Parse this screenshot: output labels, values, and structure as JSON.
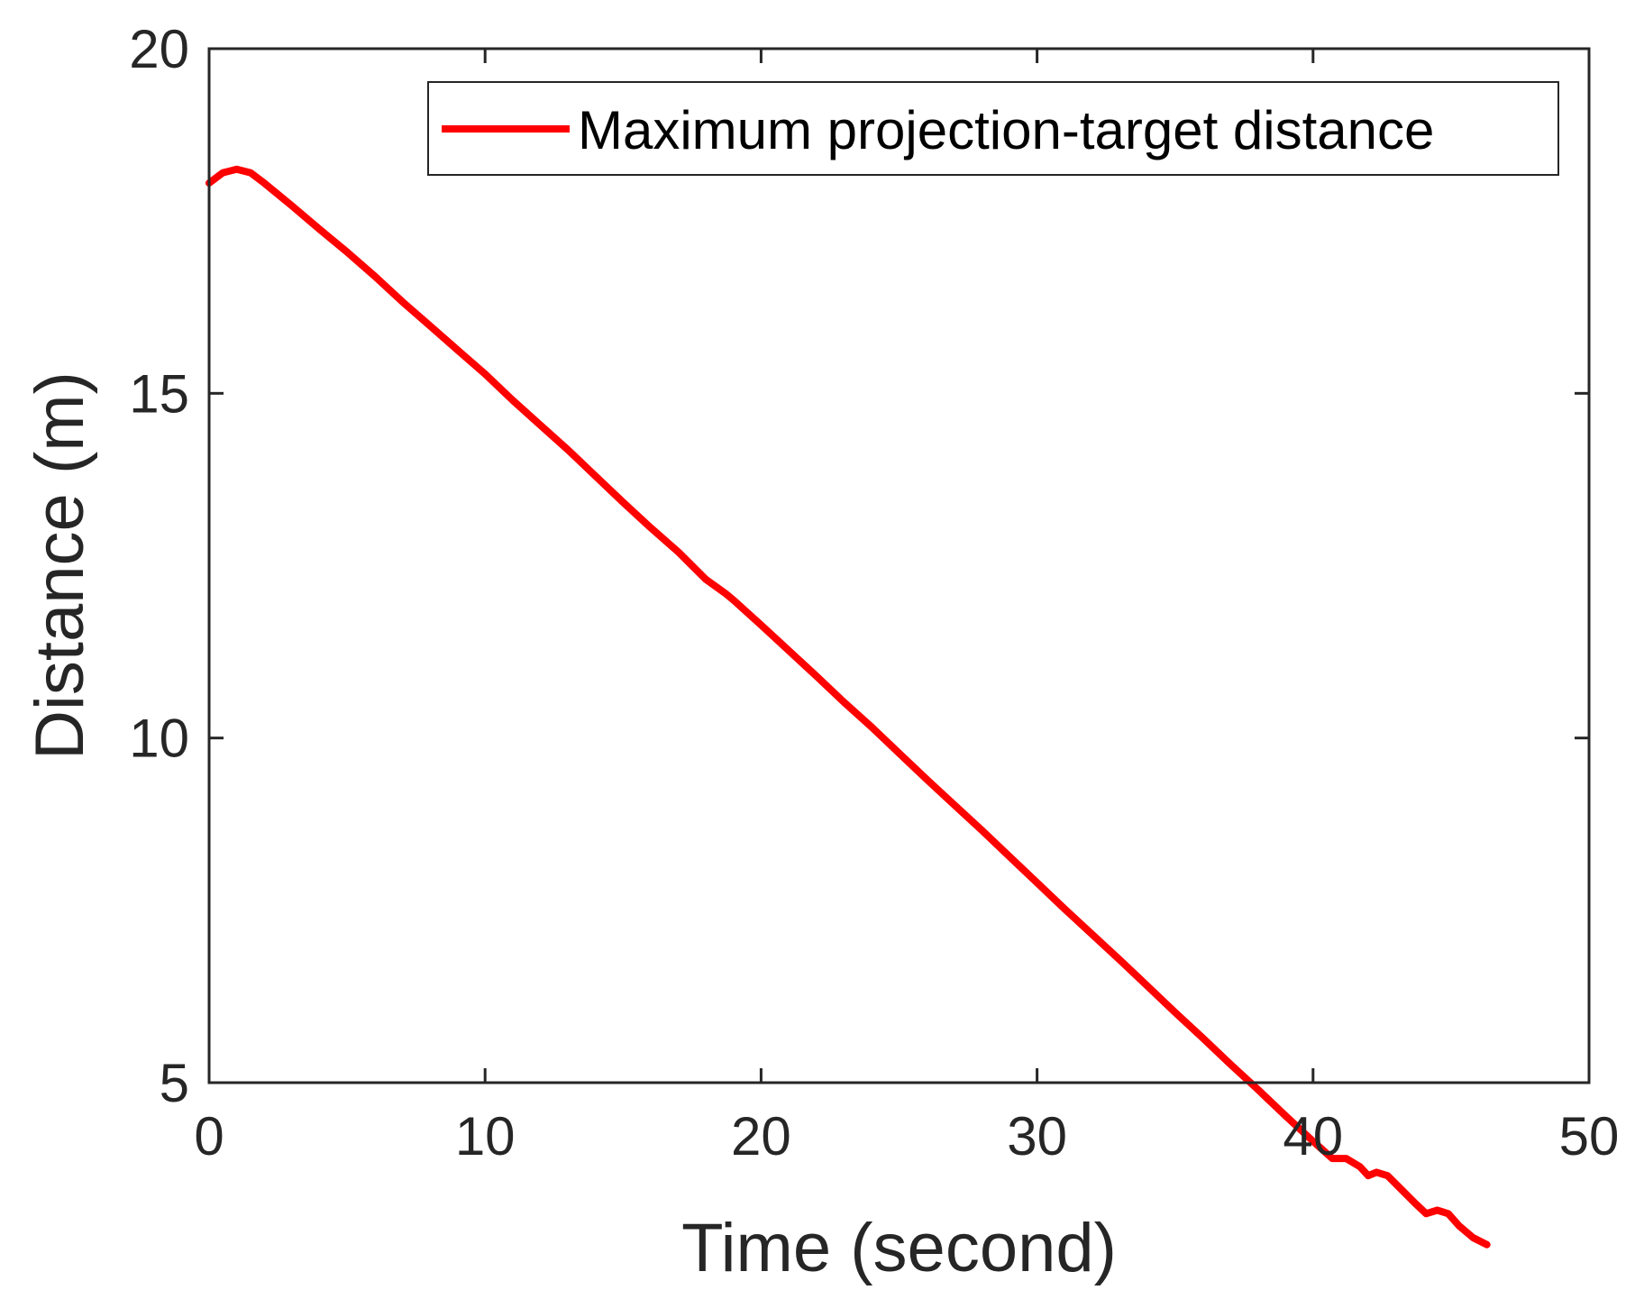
{
  "chart_data": {
    "type": "line",
    "title": "",
    "xlabel": "Time (second)",
    "ylabel": "Distance (m)",
    "xlim": [
      0,
      50
    ],
    "ylim": [
      5,
      20
    ],
    "xticks": [
      0,
      10,
      20,
      30,
      40,
      50
    ],
    "yticks": [
      5,
      10,
      15,
      20
    ],
    "xtick_labels": [
      "0",
      "10",
      "20",
      "30",
      "40",
      "50"
    ],
    "ytick_labels": [
      "5",
      "10",
      "15",
      "20"
    ],
    "grid": false,
    "legend": {
      "position": "top-right"
    },
    "series": [
      {
        "name": "Maximum projection-target distance",
        "color": "#ff0000",
        "x": [
          0,
          0.5,
          1.0,
          1.5,
          2.0,
          3,
          4,
          5,
          6,
          7,
          8,
          9,
          10,
          11,
          12,
          13,
          14,
          15,
          16,
          17,
          18,
          18.7,
          19,
          20,
          21,
          22,
          23,
          24,
          25,
          26,
          27,
          28,
          29,
          30,
          31,
          32,
          33,
          34,
          35,
          36,
          37,
          38,
          39,
          40,
          40.7,
          41.2,
          41.7,
          42.0,
          42.3,
          42.7,
          43.2,
          43.7,
          44.1,
          44.5,
          44.9,
          45.3,
          45.8,
          46.3
        ],
        "y": [
          18.05,
          18.2,
          18.25,
          18.2,
          18.05,
          17.72,
          17.38,
          17.05,
          16.7,
          16.33,
          15.98,
          15.63,
          15.28,
          14.9,
          14.54,
          14.18,
          13.8,
          13.42,
          13.05,
          12.7,
          12.3,
          12.1,
          12.0,
          11.64,
          11.27,
          10.9,
          10.52,
          10.16,
          9.78,
          9.4,
          9.03,
          8.66,
          8.28,
          7.9,
          7.52,
          7.15,
          6.78,
          6.4,
          6.02,
          5.65,
          5.27,
          4.9,
          4.52,
          4.15,
          3.9,
          3.9,
          3.78,
          3.65,
          3.7,
          3.65,
          3.45,
          3.25,
          3.1,
          3.15,
          3.1,
          2.92,
          2.75,
          2.65
        ]
      }
    ]
  }
}
